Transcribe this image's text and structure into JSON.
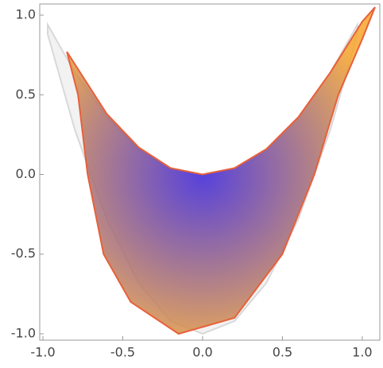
{
  "chart_data": {
    "type": "region",
    "xlim": [
      -1.02,
      1.11
    ],
    "ylim": [
      -1.04,
      1.07
    ],
    "xticks": [
      {
        "value": -1,
        "label": "-1.0"
      },
      {
        "value": -0.5,
        "label": "-0.5"
      },
      {
        "value": 0,
        "label": "0.0"
      },
      {
        "value": 0.5,
        "label": "0.5"
      },
      {
        "value": 1,
        "label": "1.0"
      }
    ],
    "yticks": [
      {
        "value": -1,
        "label": "-1.0"
      },
      {
        "value": -0.5,
        "label": "-0.5"
      },
      {
        "value": 0,
        "label": "0.0"
      },
      {
        "value": 0.5,
        "label": "0.5"
      },
      {
        "value": 1,
        "label": "1.0"
      }
    ],
    "series": [
      {
        "color": "#f0f0f0",
        "stroke": "#d8d8d8",
        "x": [
          -0.97,
          -0.8,
          -0.6,
          -0.4,
          -0.2,
          0,
          0.2,
          0.4,
          0.6,
          0.8,
          0.97,
          0.97,
          0.8,
          0.6,
          0.4,
          0.2,
          0,
          -0.2,
          -0.4,
          -0.6,
          -0.8,
          -0.97
        ],
        "y": [
          0.94,
          0.64,
          0.36,
          0.16,
          0.04,
          0,
          0.04,
          0.16,
          0.36,
          0.64,
          0.94,
          0.88,
          0.28,
          -0.28,
          -0.68,
          -0.92,
          -1,
          -0.92,
          -0.68,
          -0.28,
          0.28,
          0.88
        ]
      },
      {
        "color": [
          "#3b22d8",
          "#f7a52c"
        ],
        "stroke": "#e8603a",
        "x": [
          -0.85,
          -0.6,
          -0.4,
          -0.2,
          0,
          0.2,
          0.4,
          0.6,
          0.8,
          1.0,
          1.08,
          1.0,
          0.85,
          0.7,
          0.5,
          0.2,
          -0.15,
          -0.45,
          -0.62,
          -0.72,
          -0.78,
          -0.85
        ],
        "y": [
          0.77,
          0.38,
          0.17,
          0.04,
          0,
          0.04,
          0.16,
          0.36,
          0.64,
          0.96,
          1.05,
          0.85,
          0.5,
          0,
          -0.5,
          -0.9,
          -1,
          -0.8,
          -0.5,
          0,
          0.5,
          0.77
        ]
      }
    ]
  }
}
